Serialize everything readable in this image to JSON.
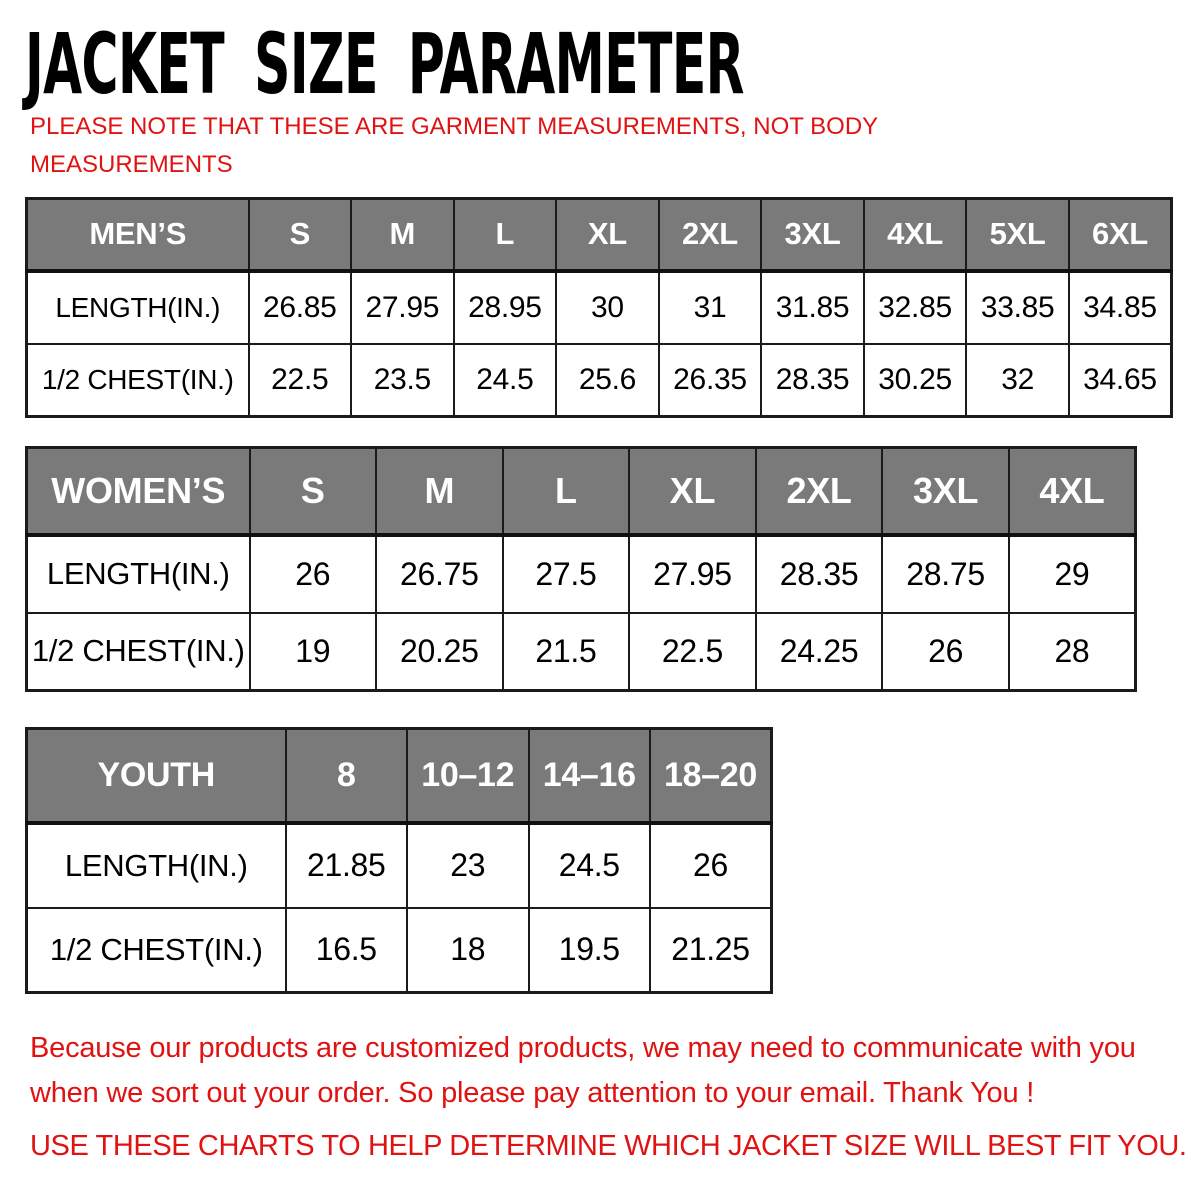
{
  "page": {
    "title": "JACKET SIZE PARAMETER",
    "subtitle_line1": "PLEASE NOTE THAT THESE ARE GARMENT MEASUREMENTS, NOT BODY",
    "subtitle_line2": "MEASUREMENTS",
    "footer_line1": "Because our products are customized products, we may need to communicate with you",
    "footer_line2": "when we sort out your order. So please pay attention to your email. Thank You !",
    "footer_charts": "USE THESE CHARTS TO HELP DETERMINE WHICH JACKET SIZE WILL BEST FIT YOU."
  },
  "colors": {
    "accent_red": "#e01212",
    "header_gray": "#7a7a7a",
    "border_black": "#1b1b1b"
  },
  "tables": [
    {
      "label": "MEN’S",
      "columns": [
        "S",
        "M",
        "L",
        "XL",
        "2XL",
        "3XL",
        "4XL",
        "5XL",
        "6XL"
      ],
      "rows": [
        {
          "label": "LENGTH(IN.)",
          "values": [
            "26.85",
            "27.95",
            "28.95",
            "30",
            "31",
            "31.85",
            "32.85",
            "33.85",
            "34.85"
          ]
        },
        {
          "label": "1/2 CHEST(IN.)",
          "values": [
            "22.5",
            "23.5",
            "24.5",
            "25.6",
            "26.35",
            "28.35",
            "30.25",
            "32",
            "34.65"
          ]
        }
      ]
    },
    {
      "label": "WOMEN’S",
      "columns": [
        "S",
        "M",
        "L",
        "XL",
        "2XL",
        "3XL",
        "4XL"
      ],
      "rows": [
        {
          "label": "LENGTH(IN.)",
          "values": [
            "26",
            "26.75",
            "27.5",
            "27.95",
            "28.35",
            "28.75",
            "29"
          ]
        },
        {
          "label": "1/2 CHEST(IN.)",
          "values": [
            "19",
            "20.25",
            "21.5",
            "22.5",
            "24.25",
            "26",
            "28"
          ]
        }
      ]
    },
    {
      "label": "YOUTH",
      "columns": [
        "8",
        "10–12",
        "14–16",
        "18–20"
      ],
      "rows": [
        {
          "label": "LENGTH(IN.)",
          "values": [
            "21.85",
            "23",
            "24.5",
            "26"
          ]
        },
        {
          "label": "1/2 CHEST(IN.)",
          "values": [
            "16.5",
            "18",
            "19.5",
            "21.25"
          ]
        }
      ]
    }
  ]
}
